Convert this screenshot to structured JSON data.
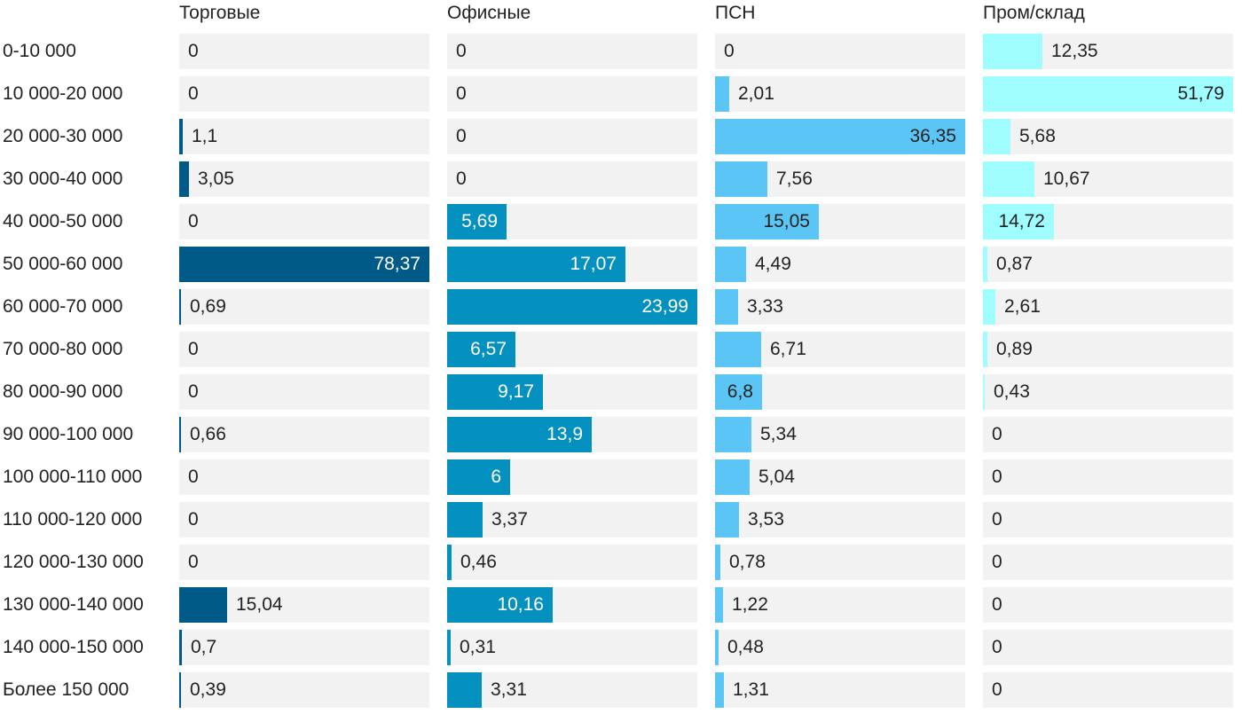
{
  "chart_data": {
    "type": "bar",
    "orientation": "horizontal",
    "layout": "small-multiples",
    "categories": [
      "0-10 000",
      "10 000-20 000",
      "20 000-30 000",
      "30 000-40 000",
      "40 000-50 000",
      "50 000-60 000",
      "60 000-70 000",
      "70 000-80 000",
      "80 000-90 000",
      "90 000-100 000",
      "100 000-110 000",
      "110 000-120 000",
      "120 000-130 000",
      "130 000-140 000",
      "140 000-150 000",
      "Более 150 000"
    ],
    "series": [
      {
        "name": "Торговые",
        "color": "#005a87",
        "text_color_inside": "#ffffff",
        "max": 78.37,
        "values": [
          0,
          0,
          1.1,
          3.05,
          0,
          78.37,
          0.69,
          0,
          0,
          0.66,
          0,
          0,
          0,
          15.04,
          0.7,
          0.39
        ],
        "labels": [
          "0",
          "0",
          "1,1",
          "3,05",
          "0",
          "78,37",
          "0,69",
          "0",
          "0",
          "0,66",
          "0",
          "0",
          "0",
          "15,04",
          "0,7",
          "0,39"
        ]
      },
      {
        "name": "Офисные",
        "color": "#0591bf",
        "text_color_inside": "#ffffff",
        "max": 23.99,
        "values": [
          0,
          0,
          0,
          0,
          5.69,
          17.07,
          23.99,
          6.57,
          9.17,
          13.9,
          6,
          3.37,
          0.46,
          10.16,
          0.31,
          3.31
        ],
        "labels": [
          "0",
          "0",
          "0",
          "0",
          "5,69",
          "17,07",
          "23,99",
          "6,57",
          "9,17",
          "13,9",
          "6",
          "3,37",
          "0,46",
          "10,16",
          "0,31",
          "3,31"
        ]
      },
      {
        "name": "ПСН",
        "color": "#5bc5f5",
        "text_color_inside": "#222222",
        "max": 36.35,
        "values": [
          0,
          2.01,
          36.35,
          7.56,
          15.05,
          4.49,
          3.33,
          6.71,
          6.8,
          5.34,
          5.04,
          3.53,
          0.78,
          1.22,
          0.48,
          1.31
        ],
        "labels": [
          "0",
          "2,01",
          "36,35",
          "7,56",
          "15,05",
          "4,49",
          "3,33",
          "6,71",
          "6,8",
          "5,34",
          "5,04",
          "3,53",
          "0,78",
          "1,22",
          "0,48",
          "1,31"
        ]
      },
      {
        "name": "Пром/склад",
        "color": "#9ffcff",
        "text_color_inside": "#222222",
        "max": 51.79,
        "values": [
          12.35,
          51.79,
          5.68,
          10.67,
          14.72,
          0.87,
          2.61,
          0.89,
          0.43,
          0,
          0,
          0,
          0,
          0,
          0,
          0
        ],
        "labels": [
          "12,35",
          "51,79",
          "5,68",
          "10,67",
          "14,72",
          "0,87",
          "2,61",
          "0,89",
          "0,43",
          "0",
          "0",
          "0",
          "0",
          "0",
          "0",
          "0"
        ]
      }
    ],
    "title": "",
    "xlabel": "",
    "ylabel": "",
    "grid": false,
    "legend": "none"
  }
}
